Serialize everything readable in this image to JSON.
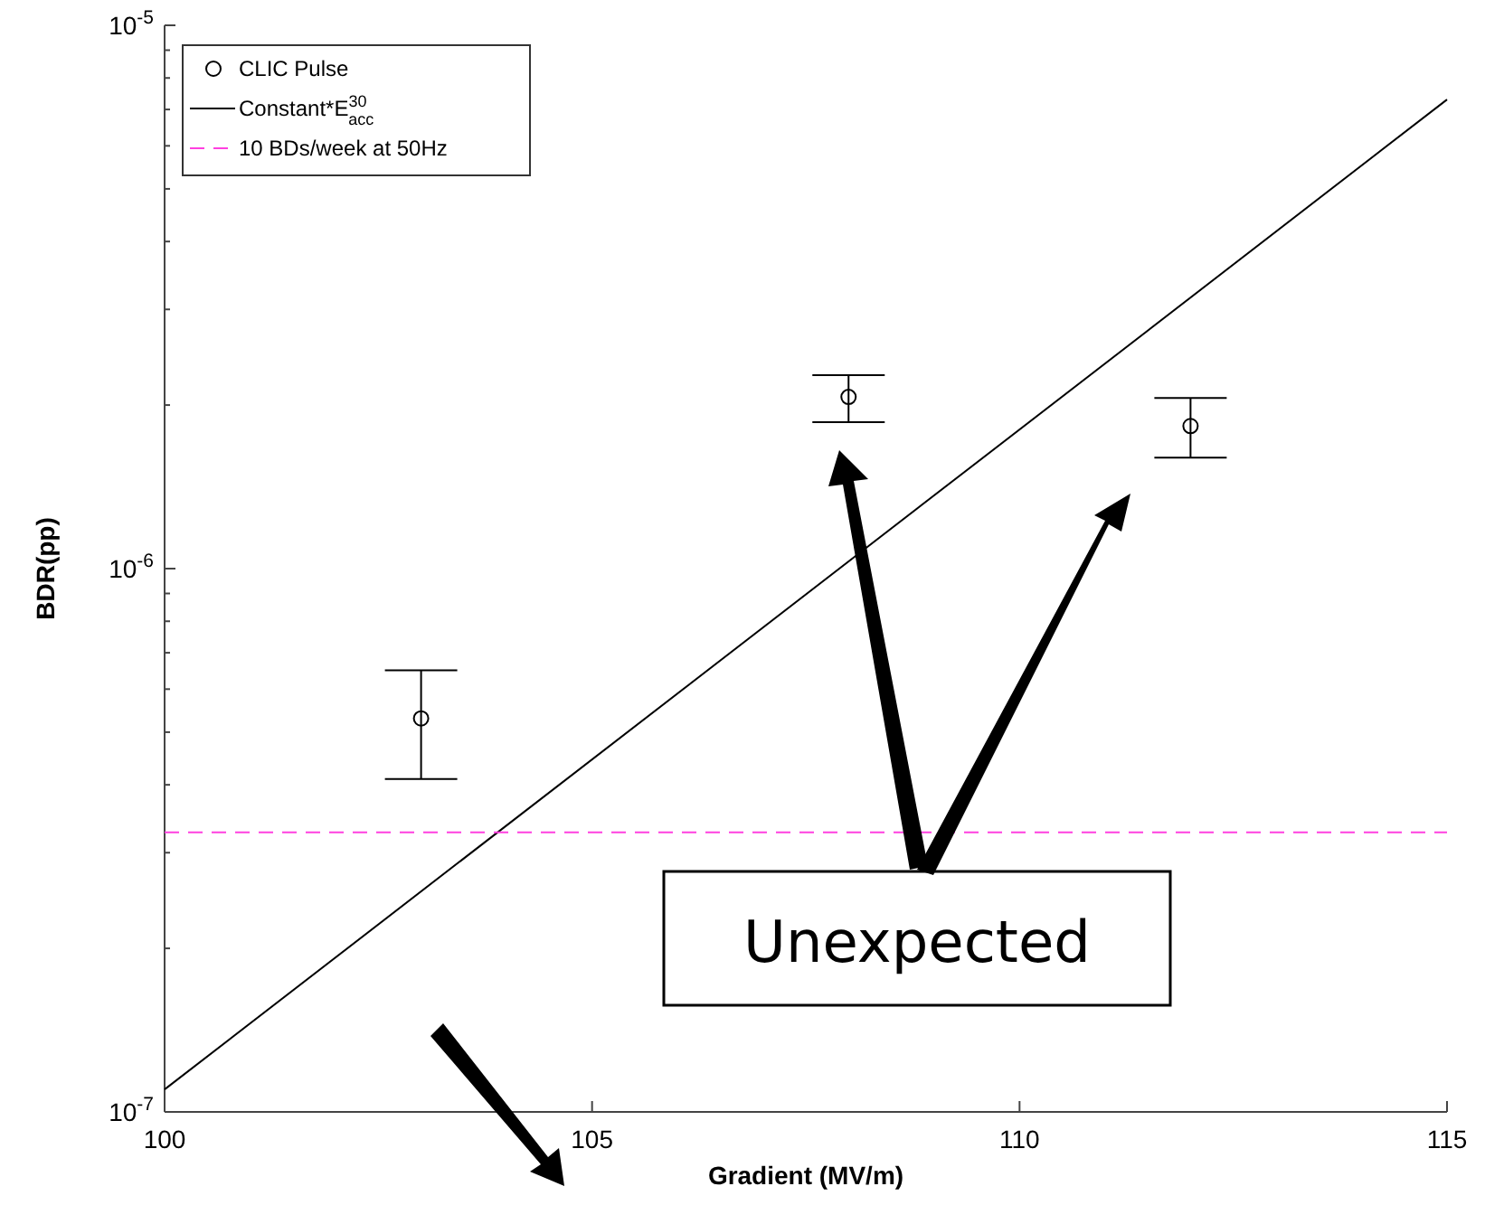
{
  "chart_data": {
    "type": "scatter",
    "xlabel": "Gradient (MV/m)",
    "ylabel": "BDR(pp)",
    "log": "y",
    "xlim": [
      100,
      115
    ],
    "xticks": [
      100,
      105,
      110,
      115
    ],
    "ylim": [
      1e-07,
      1e-05
    ],
    "yticks": [
      {
        "value": 1e-07,
        "label": "10$^{-7}$"
      },
      {
        "value": 2e-07,
        "label": null
      },
      {
        "value": 3e-07,
        "label": null
      },
      {
        "value": 4e-07,
        "label": null
      },
      {
        "value": 5e-07,
        "label": null
      },
      {
        "value": 6e-07,
        "label": null
      },
      {
        "value": 7e-07,
        "label": null
      },
      {
        "value": 8e-07,
        "label": null
      },
      {
        "value": 9e-07,
        "label": null
      },
      {
        "value": 1e-06,
        "label": "10$^{-6}$"
      },
      {
        "value": 2e-06,
        "label": null
      },
      {
        "value": 3e-06,
        "label": null
      },
      {
        "value": 4e-06,
        "label": null
      },
      {
        "value": 5e-06,
        "label": null
      },
      {
        "value": 6e-06,
        "label": null
      },
      {
        "value": 7e-06,
        "label": null
      },
      {
        "value": 8e-06,
        "label": null
      },
      {
        "value": 9e-06,
        "label": null
      },
      {
        "value": 1e-05,
        "label": "10$^{-5}$"
      }
    ],
    "grid": false,
    "legend": "top left",
    "series": [
      {
        "name": "CLIC Pulse",
        "type": "scatter",
        "color": "#000000",
        "marker": "circle",
        "x": [
          103,
          108,
          112
        ],
        "values": [
          5.3e-07,
          2.07e-06,
          1.83e-06
        ],
        "errors": [
          [
            4.1e-07,
            6.5e-07
          ],
          [
            1.86e-06,
            2.27e-06
          ],
          [
            1.6e-06,
            2.06e-06
          ]
        ]
      },
      {
        "name": "Constant*E$^{30}$$_{acc}$",
        "type": "line",
        "color": "#000000",
        "marker": "none",
        "line_style": "solid",
        "x": [
          100,
          115
        ],
        "values": [
          1.1e-07,
          7.3e-06
        ]
      },
      {
        "name": "10 BDs/week at 50Hz",
        "type": "line",
        "color": "#ff40e0",
        "marker": "none",
        "line_style": "dashed",
        "x": [
          100,
          115
        ],
        "values": [
          3.27e-07,
          3.27e-07
        ]
      }
    ],
    "annotations": [
      "Unexpected"
    ]
  }
}
